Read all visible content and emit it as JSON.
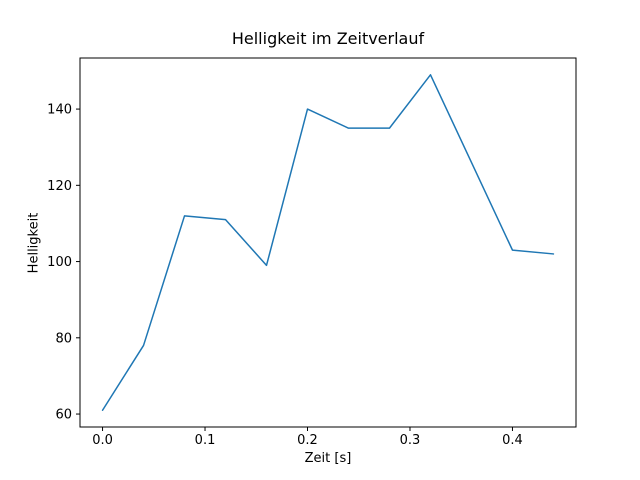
{
  "chart_data": {
    "type": "line",
    "title": "Helligkeit im Zeitverlauf",
    "xlabel": "Zeit [s]",
    "ylabel": "Helligkeit",
    "x": [
      0.0,
      0.04,
      0.08,
      0.12,
      0.16,
      0.2,
      0.24,
      0.28,
      0.32,
      0.36,
      0.4,
      0.44
    ],
    "values": [
      61,
      78,
      112,
      111,
      99,
      140,
      135,
      135,
      149,
      126,
      103,
      102
    ],
    "series_name": "Helligkeit",
    "xlim": [
      -0.022,
      0.462
    ],
    "ylim": [
      56.6,
      153.4
    ],
    "xticks": [
      0.0,
      0.1,
      0.2,
      0.3,
      0.4
    ],
    "xtick_labels": [
      "0.0",
      "0.1",
      "0.2",
      "0.3",
      "0.4"
    ],
    "yticks": [
      60,
      80,
      100,
      120,
      140
    ],
    "ytick_labels": [
      "60",
      "80",
      "100",
      "120",
      "140"
    ],
    "line_color": "#1f77b4",
    "axis_color": "#000000",
    "background": "#ffffff",
    "grid": false,
    "legend_position": "none"
  }
}
